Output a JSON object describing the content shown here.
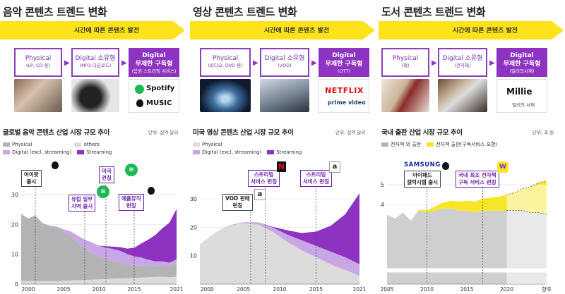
{
  "colors": {
    "arrow": "#ffe31a",
    "purple": "#8e33c1",
    "purple_light": "#c9a6e6",
    "gray_dark": "#b3b3b3",
    "gray_light": "#dcdcdc",
    "yellow": "#f7e628"
  },
  "panels": [
    {
      "title": "음악 콘텐츠 트렌드 변화",
      "arrow_label": "시간에 따른 콘텐츠 발전",
      "box1": {
        "title": "Physical",
        "sub": "(LP, CD 등)"
      },
      "box2": {
        "title": "Digital 소유형",
        "sub": "(MP3 다운로드)"
      },
      "box3": {
        "title": "Digital",
        "title2": "무제한 구독형",
        "sub": "(음원 스트리밍 서비스)"
      },
      "brands": [
        "Spotify",
        "MUSIC"
      ],
      "brand_icons": [
        "spotify-logo",
        "apple-logo"
      ],
      "chart_title": "글로벌 음악 콘텐츠 산업 시장 규모 추이",
      "unit": "단위: 십억 달러",
      "legend": [
        "Physical",
        "others",
        "Digital (excl, streaming)",
        "Streaming"
      ],
      "callouts": [
        "아이팟\n출시",
        "유럽 일부\n지역 출시",
        "미국\n런칭",
        "애플뮤직\n런칭"
      ]
    },
    {
      "title": "영상 콘텐츠 트렌드 변화",
      "arrow_label": "시간에 따른 콘텐츠 발전",
      "box1": {
        "title": "Physical",
        "sub": "(비디오, DVD 등)"
      },
      "box2": {
        "title": "Digital 소유형",
        "sub": "(VOD)"
      },
      "box3": {
        "title": "Digital",
        "title2": "무제한 구독형",
        "sub": "(OTT)"
      },
      "brands": [
        "NETFLIX",
        "prime video"
      ],
      "brand_icons": [
        "netflix-logo",
        "prime-video-logo"
      ],
      "chart_title": "미국 영상 콘텐츠 산업 시장 규모 추이",
      "unit": "단위: 십억 달러",
      "legend": [
        "Physical",
        "Digital (excl, streaming)",
        "Streaming"
      ],
      "callouts": [
        "VOD 판매\n런칭",
        "스트리밍\n서비스 런칭",
        "스트리밍\n서비스 런칭"
      ]
    },
    {
      "title": "도서 콘텐츠 트렌드 변화",
      "arrow_label": "시간에 따른 콘텐츠 발전",
      "box1": {
        "title": "Physical",
        "sub": "(책)"
      },
      "box2": {
        "title": "Digital 소유형",
        "sub": "(전자책)"
      },
      "box3": {
        "title": "Digital",
        "title2": "무제한 구독형",
        "sub": "(밀리의서재)"
      },
      "brands": [
        "Millie",
        "밀리의 서재"
      ],
      "brand_icons": [
        "millie-logo"
      ],
      "chart_title": "국내 출판 산업 시장 규모 추이",
      "unit": "단위: 조 원",
      "legend": [
        "전자책 외 출판",
        "전자책 출판(구독서비스 포함)"
      ],
      "samsung": "SAMSUNG",
      "callouts": [
        "아이패드\n갤럭시탭 출시",
        "국내 최초 전자책\n구독 서비스 런칭"
      ]
    }
  ],
  "chart_data": [
    {
      "type": "area",
      "title": "글로벌 음악 콘텐츠 산업 시장 규모 추이",
      "ylabel": "단위: 십억 달러",
      "ylim": [
        0,
        30
      ],
      "yticks": [
        0,
        10,
        20,
        30
      ],
      "xticks": [
        2000,
        2005,
        2010,
        2015,
        2021
      ],
      "x": [
        1999,
        2000,
        2001,
        2002,
        2003,
        2004,
        2005,
        2006,
        2007,
        2008,
        2009,
        2010,
        2011,
        2012,
        2013,
        2014,
        2015,
        2016,
        2017,
        2018,
        2019,
        2020,
        2021
      ],
      "series": [
        {
          "name": "others",
          "values": [
            1.0,
            1.0,
            1.0,
            1.0,
            1.0,
            1.0,
            1.1,
            1.2,
            1.3,
            1.4,
            1.5,
            1.6,
            1.7,
            1.8,
            1.9,
            2.0,
            2.1,
            2.2,
            2.3,
            2.4,
            2.5,
            2.3,
            2.5
          ]
        },
        {
          "name": "Physical",
          "values": [
            22.5,
            21.0,
            22.0,
            19.5,
            18.5,
            18.0,
            16.5,
            15.0,
            12.5,
            10.5,
            9.0,
            7.5,
            6.5,
            6.0,
            5.5,
            4.5,
            4.0,
            4.0,
            3.8,
            3.5,
            3.7,
            3.8,
            4.8
          ]
        },
        {
          "name": "Digital (excl, streaming)",
          "values": [
            0,
            0,
            0,
            0,
            0.1,
            0.3,
            0.8,
            1.5,
            2.5,
            3.0,
            3.5,
            3.8,
            4.0,
            4.0,
            3.8,
            3.6,
            3.2,
            2.7,
            2.1,
            1.7,
            1.4,
            1.1,
            1.0
          ]
        },
        {
          "name": "Streaming",
          "values": [
            0,
            0,
            0,
            0,
            0,
            0,
            0,
            0,
            0,
            0,
            0,
            0,
            0.5,
            0.8,
            1.2,
            1.8,
            2.9,
            4.7,
            6.7,
            8.9,
            11.1,
            13.4,
            16.9
          ]
        }
      ]
    },
    {
      "type": "area",
      "title": "미국 영상 콘텐츠 산업 시장 규모 추이",
      "ylabel": "단위: 십억 달러",
      "ylim": [
        0,
        35
      ],
      "yticks": [
        10,
        20,
        30
      ],
      "xticks": [
        2000,
        2005,
        2010,
        2015,
        2021
      ],
      "x": [
        1999,
        2001,
        2003,
        2005,
        2007,
        2009,
        2011,
        2013,
        2015,
        2017,
        2019,
        2021
      ],
      "series": [
        {
          "name": "Physical",
          "values": [
            14,
            18,
            20.5,
            21.5,
            21,
            18.5,
            15,
            12,
            9.5,
            7,
            5,
            3
          ]
        },
        {
          "name": "Digital (excl, streaming)",
          "values": [
            0,
            0,
            0.2,
            0.3,
            0.8,
            1.5,
            2.5,
            3.5,
            4,
            4.5,
            4.5,
            4
          ]
        },
        {
          "name": "Streaming",
          "values": [
            0,
            0,
            0,
            0,
            0,
            0.2,
            1.5,
            2.5,
            5,
            9,
            15,
            25
          ]
        }
      ]
    },
    {
      "type": "area",
      "title": "국내 출판 산업 시장 규모 추이",
      "ylabel": "단위: 조 원",
      "ylim": [
        0,
        5
      ],
      "yticks": [
        4,
        5
      ],
      "xticks": [
        "2005",
        "2010",
        "2015",
        "2020",
        "향후"
      ],
      "x": [
        2005,
        2006,
        2007,
        2008,
        2009,
        2010,
        2011,
        2012,
        2013,
        2014,
        2015,
        2016,
        2017,
        2018,
        2019,
        2020,
        2021,
        2022,
        2023,
        2024,
        2025
      ],
      "series": [
        {
          "name": "전자책 외 출판",
          "values": [
            3.5,
            3.3,
            3.6,
            3.2,
            3.7,
            3.6,
            3.7,
            3.8,
            3.8,
            3.7,
            3.7,
            3.6,
            3.7,
            3.7,
            3.7,
            3.7,
            3.7,
            3.7,
            3.6,
            3.6,
            3.5
          ],
          "forecast_from": 2020
        },
        {
          "name": "전자책 출판(구독서비스 포함)",
          "values": [
            0,
            0,
            0,
            0,
            0.05,
            0.1,
            0.2,
            0.3,
            0.4,
            0.45,
            0.5,
            0.55,
            0.6,
            0.65,
            0.7,
            0.8,
            0.9,
            1.1,
            1.3,
            1.5,
            1.7
          ],
          "forecast_from": 2020
        }
      ]
    }
  ]
}
